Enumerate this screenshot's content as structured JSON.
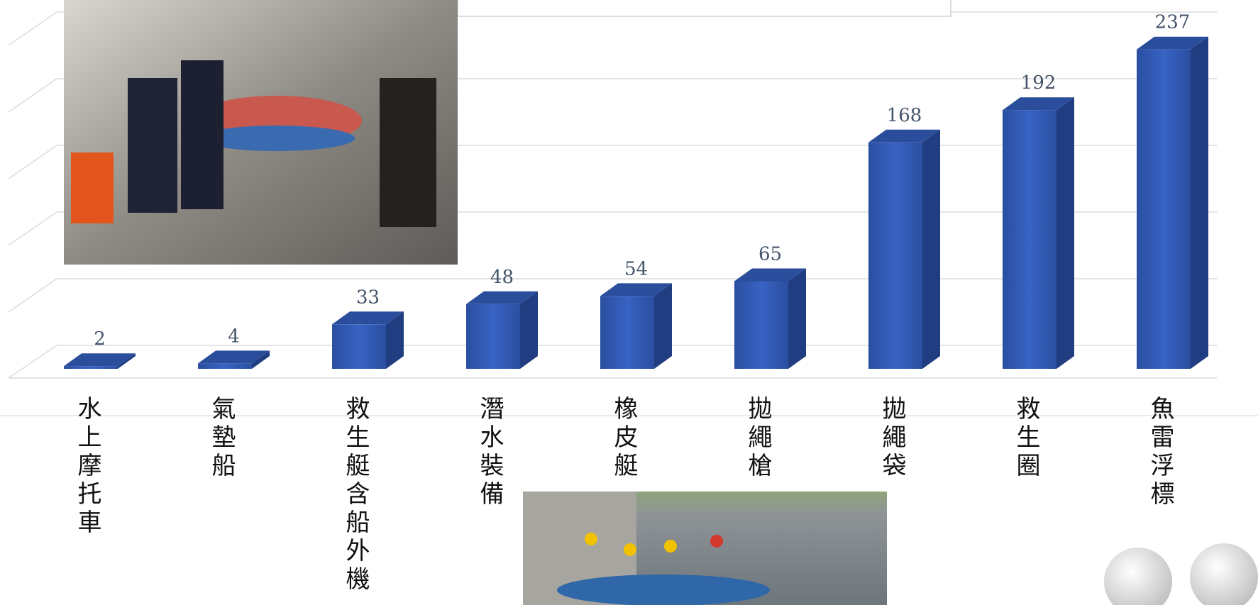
{
  "chart_data": {
    "type": "bar3d",
    "categories": [
      "水上摩托車",
      "氣墊船",
      "救生艇含船外機",
      "潛水裝備",
      "橡皮艇",
      "拋繩槍",
      "拋繩袋",
      "救生圈",
      "魚雷浮標"
    ],
    "values": [
      2,
      4,
      33,
      48,
      54,
      65,
      168,
      192,
      237
    ],
    "color": "#2f56ad",
    "ylim": [
      0,
      250
    ]
  }
}
